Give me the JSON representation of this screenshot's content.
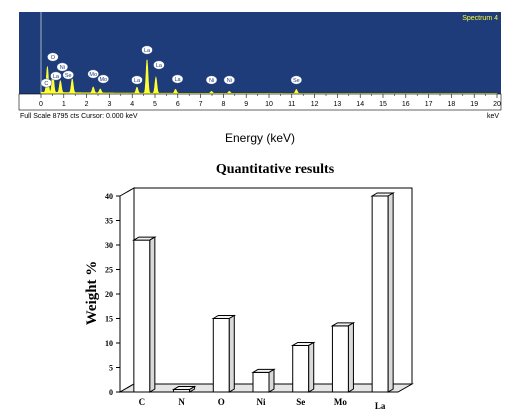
{
  "spectrum": {
    "title": "Spectrum 4",
    "footer_left": "Full Scale 8795 cts  Cursor: 0.000 keV",
    "footer_right": "keV",
    "xlabel": "Energy (keV)",
    "ticks": [
      "0",
      "1",
      "2",
      "3",
      "4",
      "5",
      "6",
      "7",
      "8",
      "9",
      "10",
      "11",
      "12",
      "13",
      "14",
      "15",
      "16",
      "17",
      "18",
      "19",
      "20"
    ],
    "peaks": [
      {
        "label": "C",
        "keV": 0.28
      },
      {
        "label": "O",
        "keV": 0.52
      },
      {
        "label": "Ni",
        "keV": 0.85
      },
      {
        "label": "La",
        "keV": 0.83
      },
      {
        "label": "Se",
        "keV": 1.37
      },
      {
        "label": "Mo",
        "keV": 2.29
      },
      {
        "label": "Mo",
        "keV": 2.6
      },
      {
        "label": "La",
        "keV": 4.21
      },
      {
        "label": "La",
        "keV": 4.65
      },
      {
        "label": "La",
        "keV": 5.04
      },
      {
        "label": "La",
        "keV": 5.9
      },
      {
        "label": "Ni",
        "keV": 7.48
      },
      {
        "label": "Ni",
        "keV": 8.26
      },
      {
        "label": "Se",
        "keV": 11.2
      }
    ],
    "colors": {
      "background": "#1f3c7a",
      "signal": "#ffff33",
      "title": "#ffff33"
    }
  },
  "chart_data": {
    "type": "bar",
    "title": "Quantitative results",
    "xlabel": "",
    "ylabel": "Weight %",
    "categories": [
      "C",
      "N",
      "O",
      "Ni",
      "Se",
      "Mo",
      "La"
    ],
    "values": [
      31,
      0.5,
      15,
      4,
      9.5,
      13.5,
      40
    ],
    "ylim": [
      0,
      40
    ],
    "yticks": [
      "0",
      "5",
      "10",
      "15",
      "20",
      "25",
      "30",
      "35",
      "40"
    ],
    "grid": false,
    "colors": {
      "bar": "#ffffff",
      "outline": "#000000"
    }
  }
}
